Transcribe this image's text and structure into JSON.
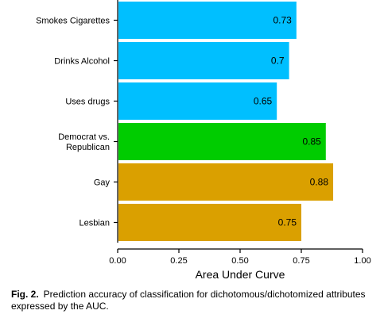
{
  "chart_data": {
    "type": "bar",
    "orientation": "horizontal",
    "categories": [
      [
        "Smokes Cigarettes"
      ],
      [
        "Drinks Alcohol"
      ],
      [
        "Uses drugs"
      ],
      [
        "Democrat vs.",
        "Republican"
      ],
      [
        "Gay"
      ],
      [
        "Lesbian"
      ]
    ],
    "values": [
      0.73,
      0.7,
      0.65,
      0.85,
      0.88,
      0.75
    ],
    "data_labels": [
      "0.73",
      "0.7",
      "0.65",
      "0.85",
      "0.88",
      "0.75"
    ],
    "bar_colors": [
      "#00BFFF",
      "#00BFFF",
      "#00BFFF",
      "#00CC00",
      "#DAA000",
      "#DAA000"
    ],
    "xlabel": "Area Under Curve",
    "xlim": [
      0,
      1
    ],
    "xticks": [
      0,
      0.25,
      0.5,
      0.75,
      1
    ],
    "xtick_labels": [
      "0.00",
      "0.25",
      "0.50",
      "0.75",
      "1.00"
    ],
    "grid": false,
    "legend": "none"
  },
  "caption": {
    "label": "Fig. 2.",
    "text": "Prediction accuracy of classification for dichotomous/dichotomized attributes expressed by the AUC."
  }
}
